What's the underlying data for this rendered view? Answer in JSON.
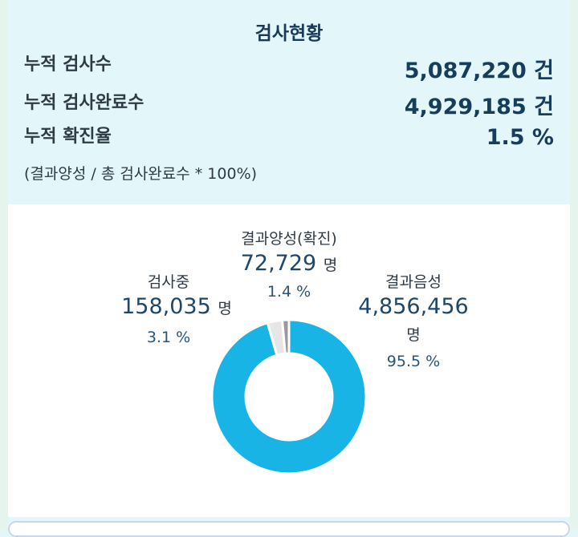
{
  "summary": {
    "title": "검사현황",
    "rows": [
      {
        "label": "누적 검사수",
        "value": "5,087,220 건"
      },
      {
        "label": "누적 검사완료수",
        "value": "4,929,185 건"
      },
      {
        "label": "누적 확진율",
        "value": "1.5 %"
      }
    ],
    "note": "(결과양성 / 총 검사완료수 * 100%)"
  },
  "chart_data": {
    "type": "pie",
    "donut": true,
    "slices": [
      {
        "name": "결과음성",
        "count": "4,856,456",
        "unit": "명",
        "percent": "95.5 %",
        "value": 95.5,
        "color": "#18b4e6"
      },
      {
        "name": "검사중",
        "count": "158,035",
        "unit": "명",
        "percent": "3.1 %",
        "value": 3.1,
        "color": "#e6e6e6"
      },
      {
        "name": "결과양성(확진)",
        "count": "72,729",
        "unit": "명",
        "percent": "1.4 %",
        "value": 1.4,
        "color": "#9a9a9a"
      }
    ]
  }
}
